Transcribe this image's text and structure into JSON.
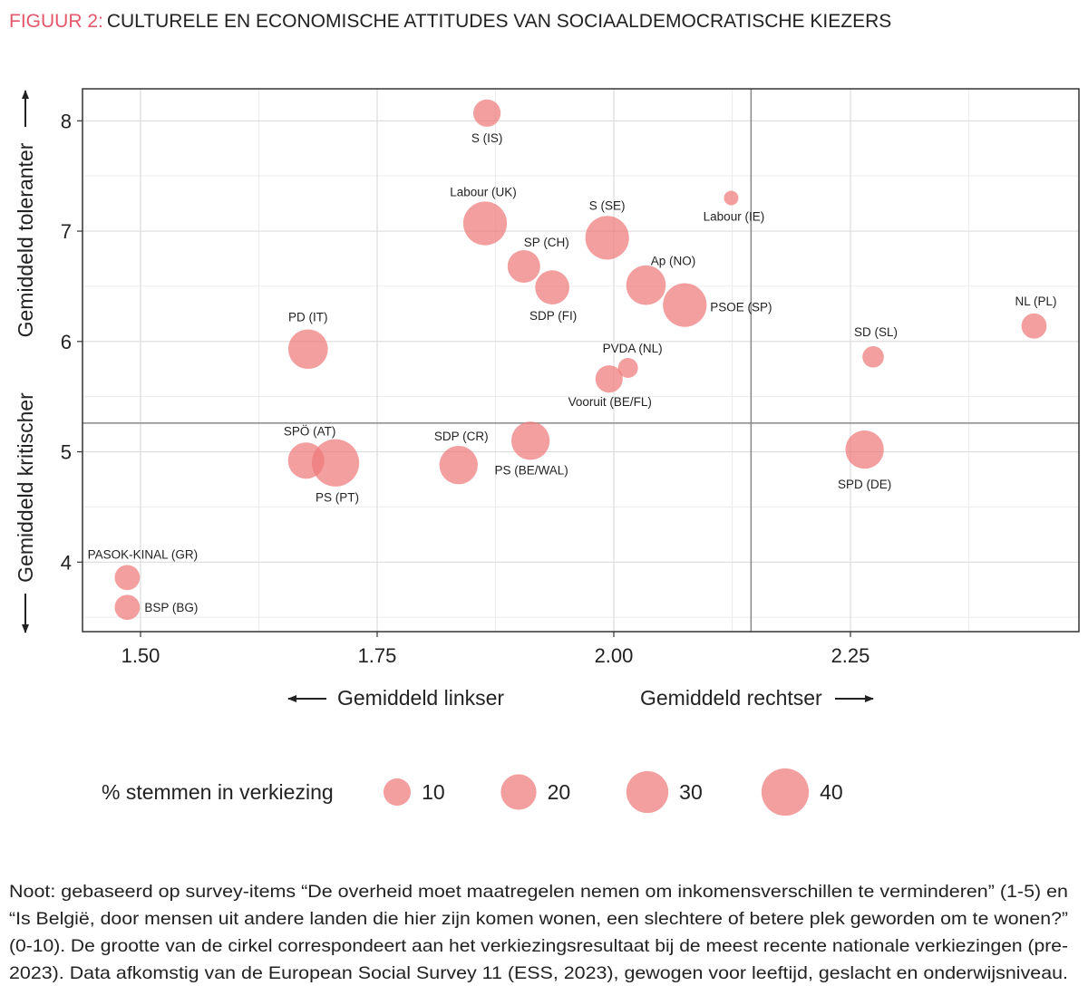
{
  "title_prefix": "FIGUUR 2:",
  "title": "CULTURELE EN ECONOMISCHE ATTITUDES VAN  SOCIAALDEMOCRATISCHE KIEZERS",
  "chart_data": {
    "type": "bubble",
    "y_label_top": "Gemiddeld toleranter",
    "y_label_bottom": "Gemiddeld kritischer",
    "x_label_left": "Gemiddeld linkser",
    "x_label_right": "Gemiddeld rechtser",
    "color": "#ee7a7a",
    "xlim": [
      1.4387,
      2.4914
    ],
    "ylim": [
      3.37,
      8.29
    ],
    "xticks": [
      {
        "value": 1.5,
        "label": "1.50"
      },
      {
        "value": 1.75,
        "label": "1.75"
      },
      {
        "value": 2,
        "label": "2.00"
      },
      {
        "value": 2.25,
        "label": "2.25"
      }
    ],
    "yticks": [
      4,
      5,
      6,
      7,
      8
    ],
    "minor_xticks": [
      1.625,
      1.875,
      2.125,
      2.375
    ],
    "minor_yticks": [
      3.5,
      4.5,
      5.5,
      6.5,
      7.5
    ],
    "grid": true,
    "ref_x": 2.145,
    "ref_y": 5.26,
    "points": [
      {
        "label": "S (IS)",
        "x": 1.866,
        "y": 8.07,
        "size": 10
      },
      {
        "label": "Labour (UK)",
        "x": 1.864,
        "y": 7.07,
        "size": 33
      },
      {
        "label": "S (SE)",
        "x": 1.993,
        "y": 6.94,
        "size": 33
      },
      {
        "label": "Labour (IE)",
        "x": 2.124,
        "y": 7.3,
        "size": 1.3
      },
      {
        "label": "SP (CH)",
        "x": 1.905,
        "y": 6.68,
        "size": 16
      },
      {
        "label": "SDP (FI)",
        "x": 1.935,
        "y": 6.49,
        "size": 18
      },
      {
        "label": "Ap (NO)",
        "x": 2.034,
        "y": 6.51,
        "size": 26
      },
      {
        "label": "PSOE (SP)",
        "x": 2.075,
        "y": 6.33,
        "size": 33
      },
      {
        "label": "NL (PL)",
        "x": 2.444,
        "y": 6.14,
        "size": 8
      },
      {
        "label": "PD (IT)",
        "x": 1.677,
        "y": 5.93,
        "size": 26
      },
      {
        "label": "SD (SL)",
        "x": 2.274,
        "y": 5.86,
        "size": 5
      },
      {
        "label": "PVDA (NL)",
        "x": 2.015,
        "y": 5.76,
        "size": 4
      },
      {
        "label": "Vooruit (BE/FL)",
        "x": 1.995,
        "y": 5.66,
        "size": 10
      },
      {
        "label": "PS (BE/WAL)",
        "x": 1.912,
        "y": 5.1,
        "size": 24
      },
      {
        "label": "SPD (DE)",
        "x": 2.265,
        "y": 5.02,
        "size": 24
      },
      {
        "label": "SPÖ (AT)",
        "x": 1.675,
        "y": 4.92,
        "size": 21
      },
      {
        "label": "PS (PT)",
        "x": 1.706,
        "y": 4.9,
        "size": 40
      },
      {
        "label": "SDP (CR)",
        "x": 1.836,
        "y": 4.88,
        "size": 24
      },
      {
        "label": "PASOK-KINAL (GR)",
        "x": 1.486,
        "y": 3.86,
        "size": 8
      },
      {
        "label": "BSP (BG)",
        "x": 1.486,
        "y": 3.59,
        "size": 8
      }
    ],
    "legend_title": "% stemmen in verkiezing",
    "legend_sizes": [
      10,
      20,
      30,
      40
    ]
  },
  "note": [
    "Noot: gebaseerd op survey-items “De overheid moet maatregelen nemen om inkomensverschillen te verminderen” (1-5) en",
    "“Is België, door mensen uit andere landen die hier zijn komen wonen, een slechtere of betere plek geworden om te wonen?”",
    "(0-10). De grootte van de cirkel correspondeert aan het verkiezingsresultaat bij de meest recente nationale verkiezingen (pre-",
    "2023). Data afkomstig van de European Social Survey 11 (ESS, 2023), gewogen voor leeftijd, geslacht en onderwijsniveau."
  ]
}
